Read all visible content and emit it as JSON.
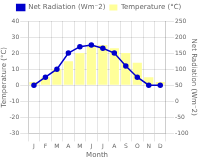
{
  "chart_data": {
    "type": "bar",
    "categories": [
      "J",
      "F",
      "M",
      "A",
      "M",
      "J",
      "J",
      "A",
      "S",
      "O",
      "N",
      "D"
    ],
    "xlabel": "Month",
    "ylabel": "Temperature (°C)",
    "y2label": "Net Radiation (Wm⁻2)",
    "series": [
      {
        "name": "Net Radiation (Wm⁻2)",
        "type": "line",
        "axis": "y2",
        "color": "#0000cc",
        "marker": "circle",
        "values": [
          50,
          75,
          100,
          150,
          170,
          175,
          165,
          150,
          110,
          75,
          50,
          50
        ]
      },
      {
        "name": "Temperature (°C)",
        "type": "bar",
        "color": "#ffff99",
        "values": [
          2,
          5,
          10,
          15,
          20,
          25,
          25,
          23,
          20,
          14,
          5,
          2
        ]
      }
    ],
    "ylim": [
      -30,
      40
    ],
    "yticks": [
      -30,
      -20,
      -10,
      0,
      10,
      20,
      30,
      40
    ],
    "y2lim": [
      -100,
      250
    ],
    "y2ticks": [
      -100,
      -50,
      0,
      50,
      100,
      150,
      200,
      250
    ],
    "grid": true,
    "legend": "top"
  }
}
